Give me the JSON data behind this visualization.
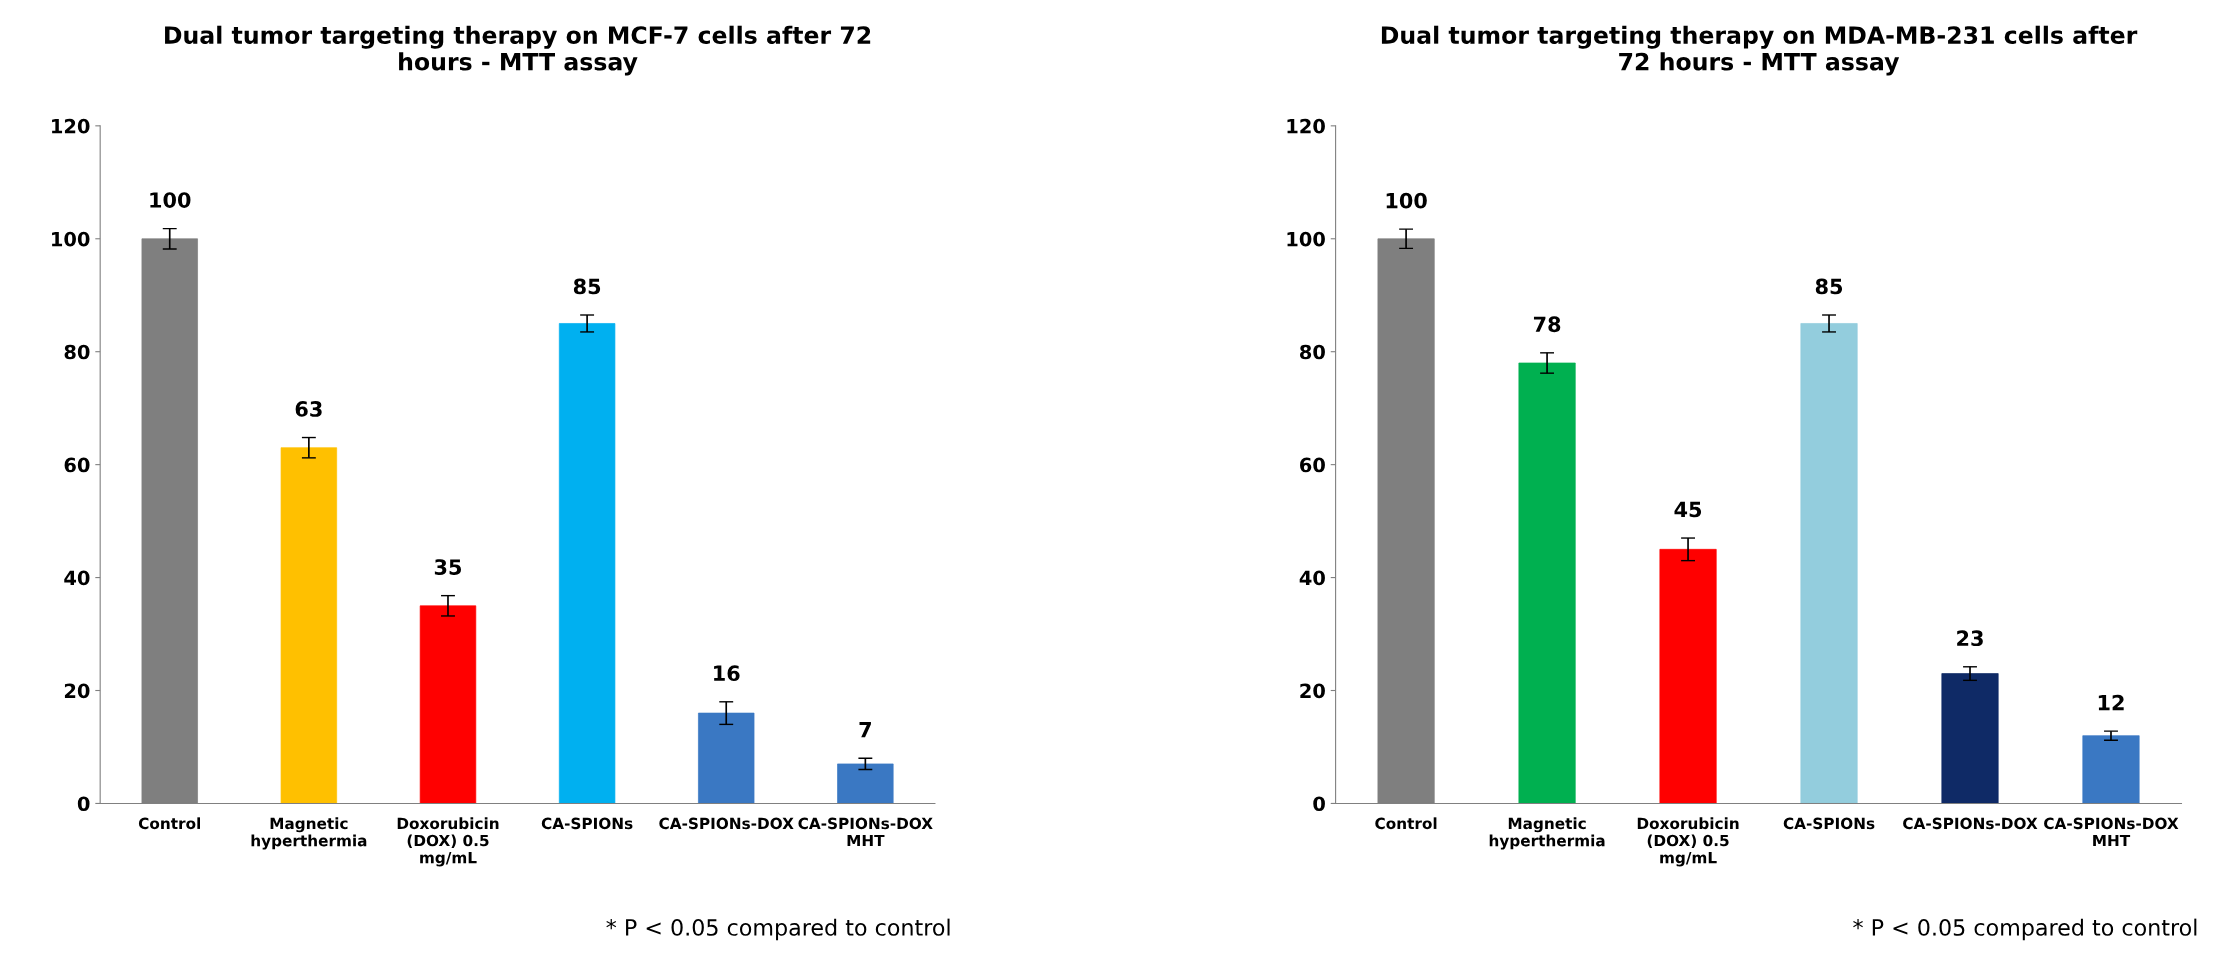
{
  "chart_data": [
    {
      "type": "bar",
      "title": "Dual tumor targeting therapy on MCF-7 cells after 72\nhours - MTT assay",
      "categories": [
        "Control",
        "Magnetic\nhyperthermia",
        "Doxorubicin\n(DOX) 0.5\nmg/mL",
        "CA-SPIONs",
        "CA-SPIONs-DOX",
        "CA-SPIONs-DOX\nMHT"
      ],
      "values": [
        100,
        63,
        35,
        85,
        16,
        7
      ],
      "colors": [
        "#7f7f7f",
        "#ffc000",
        "#ff0000",
        "#00b0f0",
        "#3a78c3",
        "#3a78c3"
      ],
      "errors": [
        1.8,
        1.8,
        1.8,
        1.5,
        2,
        1
      ],
      "ylim": [
        0,
        120
      ],
      "yticks": [
        0,
        20,
        40,
        60,
        80,
        100,
        120
      ],
      "data_labels": true,
      "grid": false,
      "legend": false,
      "annotations": [
        "* P < 0.05 compared to control"
      ]
    },
    {
      "type": "bar",
      "title": "Dual tumor targeting therapy on MDA-MB-231 cells after\n72 hours - MTT assay",
      "categories": [
        "Control",
        "Magnetic\nhyperthermia",
        "Doxorubicin\n(DOX) 0.5\nmg/mL",
        "CA-SPIONs",
        "CA-SPIONs-DOX",
        "CA-SPIONs-DOX\nMHT"
      ],
      "values": [
        100,
        78,
        45,
        85,
        23,
        12
      ],
      "colors": [
        "#7f7f7f",
        "#00b050",
        "#ff0000",
        "#93cddd",
        "#0f2a66",
        "#3a78c3"
      ],
      "errors": [
        1.7,
        1.8,
        2,
        1.5,
        1.2,
        0.8
      ],
      "ylim": [
        0,
        120
      ],
      "yticks": [
        0,
        20,
        40,
        60,
        80,
        100,
        120
      ],
      "data_labels": true,
      "grid": false,
      "legend": false,
      "annotations": [
        "* P < 0.05 compared to control"
      ]
    }
  ]
}
